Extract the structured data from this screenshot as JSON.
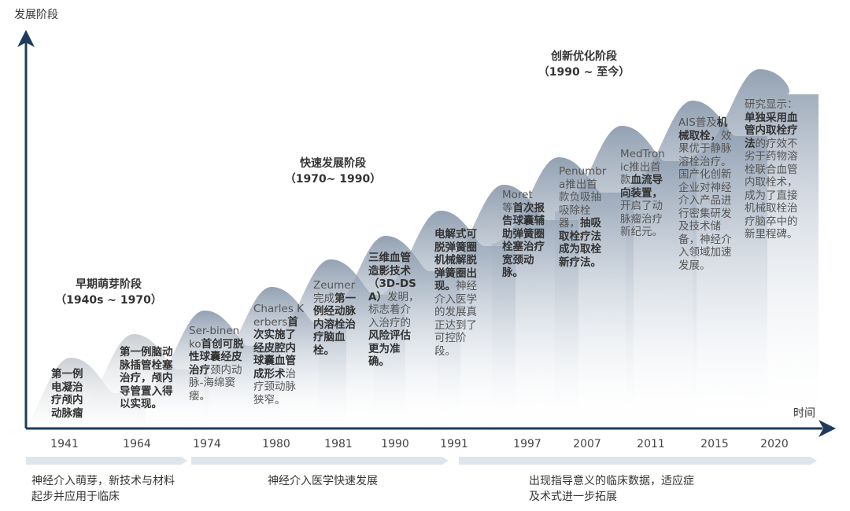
{
  "axis": {
    "y_label": "发展阶段",
    "x_label": "时间"
  },
  "stages": [
    {
      "title": "早期萌芽阶段",
      "period": "（1940s ~ 1970）"
    },
    {
      "title": "快速发展阶段",
      "period": "（1970~ 1990）"
    },
    {
      "title": "创新优化阶段",
      "period": "（1990 ~ 至今）"
    }
  ],
  "milestones": [
    {
      "year": "1941",
      "segments": [
        {
          "text": "第一例电凝治疗颅内动脉瘤",
          "bold": true
        }
      ]
    },
    {
      "year": "1964",
      "segments": [
        {
          "text": "第一例脑动脉插管栓塞治疗，颅内导管置入得以实现。",
          "bold": true
        }
      ]
    },
    {
      "year": "1974",
      "segments": [
        {
          "text": "Ser-binenko",
          "bold": false
        },
        {
          "text": "首创可脱性球囊经皮治疗",
          "bold": true
        },
        {
          "text": "颈内动脉-海绵窦瘘。",
          "bold": false
        }
      ]
    },
    {
      "year": "1980",
      "segments": [
        {
          "text": "Charles Kerbers",
          "bold": false
        },
        {
          "text": "首次实施了经皮腔内球囊血管成形术",
          "bold": true
        },
        {
          "text": "治疗颈动脉狭窄。",
          "bold": false
        }
      ]
    },
    {
      "year": "1981",
      "segments": [
        {
          "text": "Zeumer 完成",
          "bold": false
        },
        {
          "text": "第一例经动脉内溶栓治疗脑血栓。",
          "bold": true
        }
      ]
    },
    {
      "year": "1990",
      "segments": [
        {
          "text": "三维血管造影技术（3D-DSA）",
          "bold": true
        },
        {
          "text": "发明，标志着介入治疗的",
          "bold": false
        },
        {
          "text": "风险评估更为准确。",
          "bold": true
        }
      ]
    },
    {
      "year": "1991",
      "segments": [
        {
          "text": "电解式可脱弹簧圈机械解脱弹簧圈出现。",
          "bold": true
        },
        {
          "text": "神经介入医学的发展真正达到了可控阶段。",
          "bold": false
        }
      ]
    },
    {
      "year": "1997",
      "segments": [
        {
          "text": "Moret 等",
          "bold": false
        },
        {
          "text": "首次报告球囊辅助弹簧圈栓塞治疗宽颈动脉。",
          "bold": true
        }
      ]
    },
    {
      "year": "2007",
      "segments": [
        {
          "text": "Penumbra推出首款负吸抽吸除栓器，",
          "bold": false
        },
        {
          "text": "抽吸取栓疗法成为取栓新疗法。",
          "bold": true
        }
      ]
    },
    {
      "year": "2011",
      "segments": [
        {
          "text": "MedTronic推出首款",
          "bold": false
        },
        {
          "text": "血流导向装置，",
          "bold": true
        },
        {
          "text": "开启了动脉瘤治疗新纪元。",
          "bold": false
        }
      ]
    },
    {
      "year": "2015",
      "segments": [
        {
          "text": "AIS普及",
          "bold": false
        },
        {
          "text": "机械取栓，",
          "bold": true
        },
        {
          "text": "效果优于静脉溶栓治疗。国产化创新企业对神经介入产品进行密集研发及技术储备，神经介入领域加速发展。",
          "bold": false
        }
      ]
    },
    {
      "year": "2020",
      "segments": [
        {
          "text": "研究显示：",
          "bold": false
        },
        {
          "text": "单独采用血管内取栓疗法",
          "bold": true
        },
        {
          "text": "的疗效不劣于药物溶栓联合血管内取栓术，成为了直接机械取栓治疗脑卒中的新里程碑。",
          "bold": false
        }
      ]
    }
  ],
  "phases": [
    "神经介入萌芽，新技术与材料起步并应用于临床",
    "神经介入医学快速发展",
    "出现指导意义的临床数据，适应症及术式进一步拓展"
  ]
}
